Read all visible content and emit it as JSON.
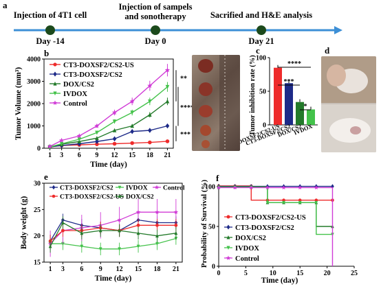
{
  "timeline": {
    "panel": "a",
    "events": [
      {
        "label": "Injection of 4T1 cell",
        "day": "Day -14"
      },
      {
        "label_line1": "Injection of sampels",
        "label_line2": "and sonotherapy",
        "day": "Day 0"
      },
      {
        "label": "Sacrified and H&E analysis",
        "day": "Day  21"
      }
    ]
  },
  "colors": {
    "red": "#ee2b2b",
    "navy": "#1d2a88",
    "darkgreen": "#237a2a",
    "lightgreen": "#43c24a",
    "magenta": "#d03bd6",
    "timeline": "#3d8fd6",
    "node": "#1c4a1c"
  },
  "chart_data": [
    {
      "panel": "b",
      "type": "line",
      "xlabel": "Time (day)",
      "ylabel": "Tumor Volume (mm³)",
      "x": [
        1,
        3,
        6,
        9,
        12,
        15,
        18,
        21
      ],
      "ylim": [
        0,
        4000
      ],
      "yticks": [
        0,
        1000,
        2000,
        3000,
        4000
      ],
      "legend_position": "top-left",
      "significance": [
        "**",
        "****",
        "***"
      ],
      "series": [
        {
          "name": "CT3-DOXSF2/CS2-US",
          "color": "#ee2b2b",
          "marker": "circle",
          "values": [
            60,
            120,
            150,
            180,
            200,
            230,
            260,
            310
          ]
        },
        {
          "name": "CT3-DOXSF2/CS2",
          "color": "#1d2a88",
          "marker": "diamond",
          "values": [
            60,
            120,
            200,
            300,
            420,
            750,
            800,
            1000
          ]
        },
        {
          "name": "DOX/CS2",
          "color": "#237a2a",
          "marker": "triangle",
          "values": [
            60,
            180,
            300,
            450,
            800,
            1000,
            1500,
            2100
          ]
        },
        {
          "name": "IVDOX",
          "color": "#43c24a",
          "marker": "triangle-down",
          "values": [
            60,
            200,
            400,
            700,
            1200,
            1600,
            2100,
            2750
          ]
        },
        {
          "name": "Control",
          "color": "#d03bd6",
          "marker": "star",
          "values": [
            80,
            350,
            550,
            1000,
            1600,
            2100,
            2800,
            3500
          ]
        }
      ]
    },
    {
      "panel": "c",
      "type": "bar",
      "ylabel": "Tumor inhibition rate (%)",
      "categories": [
        "CT3-DOXSF2/CS2-US",
        "CT3-DOXSF2/CS2",
        "DOX/CS2",
        "IVDOX"
      ],
      "values": [
        85,
        62,
        34,
        23
      ],
      "colors": [
        "#ee2b2b",
        "#1d2a88",
        "#237a2a",
        "#43c24a"
      ],
      "ylim": [
        0,
        100
      ],
      "yticks": [
        0,
        50,
        100
      ],
      "significance": [
        "****",
        "***",
        "*"
      ]
    },
    {
      "panel": "e",
      "type": "line",
      "xlabel": "Time (day)",
      "ylabel": "Body weight (g)",
      "x": [
        1,
        3,
        6,
        9,
        12,
        15,
        18,
        21
      ],
      "ylim": [
        15,
        30
      ],
      "yticks": [
        15,
        20,
        25,
        30
      ],
      "series": [
        {
          "name": "CT3-DOXSF2/CS2",
          "color": "#1d2a88",
          "marker": "diamond",
          "values": [
            19,
            23,
            22,
            21.5,
            21,
            23,
            22.5,
            22.5
          ]
        },
        {
          "name": "IVDOX",
          "color": "#43c24a",
          "marker": "triangle-down",
          "values": [
            18.5,
            18.5,
            18,
            17.5,
            17.5,
            18,
            18.5,
            19.5
          ]
        },
        {
          "name": "Control",
          "color": "#d03bd6",
          "marker": "star",
          "values": [
            18.5,
            21,
            21.5,
            22,
            23,
            24.5,
            24.5,
            24.5
          ]
        },
        {
          "name": "CT3-DOXSF2/CS2-US",
          "color": "#ee2b2b",
          "marker": "circle",
          "values": [
            19,
            21,
            21,
            21.5,
            21,
            22,
            22,
            22
          ]
        },
        {
          "name": "DOX/CS2",
          "color": "#237a2a",
          "marker": "triangle",
          "values": [
            18,
            22.5,
            20.5,
            21,
            21,
            20.5,
            20,
            20.5
          ]
        }
      ]
    },
    {
      "panel": "f",
      "type": "line",
      "xlabel": "Time (day)",
      "ylabel": "Probability of Survival (%)",
      "xlim": [
        0,
        25
      ],
      "xticks": [
        0,
        5,
        10,
        15,
        20,
        25
      ],
      "ylim": [
        0,
        100
      ],
      "yticks": [
        0,
        50,
        100
      ],
      "series": [
        {
          "name": "CT3-DOXSF2/CS2-US",
          "color": "#ee2b2b",
          "marker": "circle",
          "x": [
            0,
            6,
            6,
            21
          ],
          "values": [
            100,
            100,
            83,
            83
          ]
        },
        {
          "name": "CT3-DOXSF2/CS2",
          "color": "#1d2a88",
          "marker": "diamond",
          "x": [
            0,
            21
          ],
          "values": [
            100,
            100
          ]
        },
        {
          "name": "DOX/CS2",
          "color": "#237a2a",
          "marker": "triangle",
          "x": [
            0,
            9,
            9,
            18,
            18,
            21
          ],
          "values": [
            100,
            100,
            80,
            80,
            50,
            50
          ]
        },
        {
          "name": "IVDOX",
          "color": "#43c24a",
          "marker": "triangle-down",
          "x": [
            0,
            9,
            9,
            18,
            18,
            21
          ],
          "values": [
            100,
            100,
            80,
            80,
            40,
            40
          ]
        },
        {
          "name": "Control",
          "color": "#d03bd6",
          "marker": "star",
          "x": [
            0,
            21,
            21
          ],
          "values": [
            100,
            100,
            0
          ]
        }
      ]
    }
  ],
  "photos": [
    {
      "panel": "",
      "name": "tumor-photo"
    },
    {
      "panel": "d",
      "name": "mouse-photo"
    }
  ]
}
